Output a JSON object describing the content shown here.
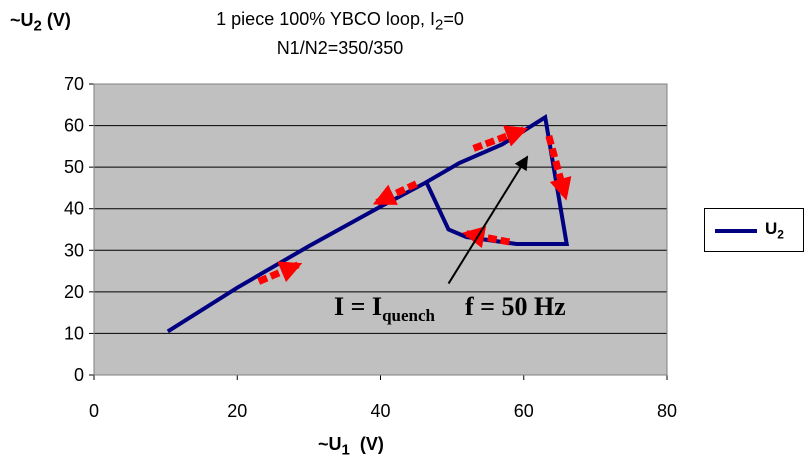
{
  "chart_data": {
    "type": "line",
    "title_line1_pre": "1 piece 100% YBCO loop,  I",
    "title_line1_sub": "2",
    "title_line1_post": "=0",
    "title_line2": "N1/N2=350/350",
    "ylabel_main": "~U",
    "ylabel_sub": "2",
    "ylabel_unit": " (V)",
    "xlabel_main": "~U",
    "xlabel_sub": "1",
    "xlabel_unit": "  (V)",
    "xlim": [
      0,
      80
    ],
    "ylim": [
      0,
      70
    ],
    "xticks": [
      0,
      20,
      40,
      60,
      80
    ],
    "yticks": [
      0,
      10,
      20,
      30,
      40,
      50,
      60,
      70
    ],
    "grid": "horizontal",
    "plot_background": "#C0C0C0",
    "legend_position": "right",
    "series": [
      {
        "name_main": "U",
        "name_sub": "2",
        "color": "#000080",
        "x": [
          10.3,
          20,
          30,
          40,
          46,
          51,
          57,
          63,
          66,
          65.8,
          59,
          52,
          49.5,
          46.5
        ],
        "y": [
          10.5,
          21,
          31,
          40.5,
          46,
          51,
          55.5,
          62,
          31.5,
          31.5,
          31.5,
          33.2,
          35,
          46
        ]
      }
    ],
    "annotations": {
      "current_main": "I = I",
      "current_sub": "quench",
      "frequency": "f = 50 Hz",
      "arrow_color": "#FF0000",
      "direction_arrows": [
        {
          "x1": 23,
          "y1": 22.5,
          "x2": 28.5,
          "y2": 26.5
        },
        {
          "x1": 45,
          "y1": 46,
          "x2": 39.5,
          "y2": 41.5
        },
        {
          "x1": 53,
          "y1": 54.5,
          "x2": 60,
          "y2": 59
        },
        {
          "x1": 63.5,
          "y1": 57.5,
          "x2": 65.8,
          "y2": 43
        },
        {
          "x1": 58,
          "y1": 32,
          "x2": 52,
          "y2": 34
        }
      ],
      "pointer": {
        "x1": 49.5,
        "y1": 22,
        "x2": 60.5,
        "y2": 52.5
      }
    }
  }
}
